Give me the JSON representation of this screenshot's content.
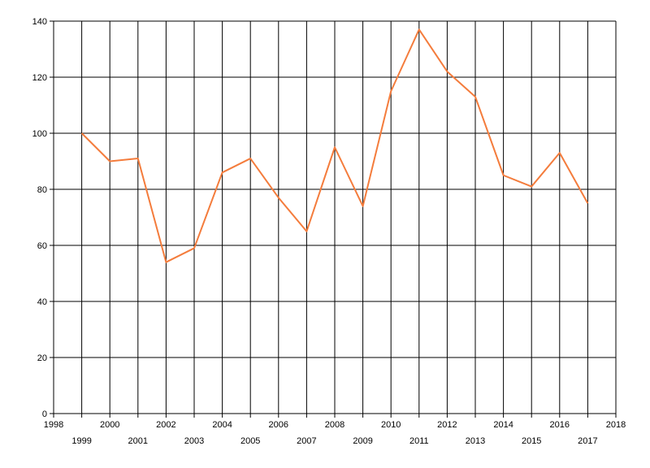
{
  "chart_data": {
    "type": "line",
    "title": "",
    "xlabel": "",
    "ylabel": "",
    "xlim": [
      1998,
      2018
    ],
    "ylim": [
      0,
      140
    ],
    "x_ticks": [
      "1998",
      "1999",
      "2000",
      "2001",
      "2002",
      "2003",
      "2004",
      "2005",
      "2006",
      "2007",
      "2008",
      "2009",
      "2010",
      "2011",
      "2012",
      "2013",
      "2014",
      "2015",
      "2016",
      "2017",
      "2018"
    ],
    "y_ticks": [
      "0",
      "20",
      "40",
      "60",
      "80",
      "100",
      "120",
      "140"
    ],
    "grid": true,
    "legend": "none",
    "series": [
      {
        "color": "#f47c3c",
        "x": [
          1999,
          2000,
          2001,
          2002,
          2003,
          2004,
          2005,
          2006,
          2007,
          2008,
          2009,
          2010,
          2011,
          2012,
          2013,
          2014,
          2015,
          2016,
          2017
        ],
        "values": [
          100,
          90,
          91,
          54,
          59,
          86,
          91,
          77,
          65,
          95,
          74,
          115,
          137,
          122,
          113,
          85,
          81,
          93,
          75
        ]
      }
    ]
  }
}
